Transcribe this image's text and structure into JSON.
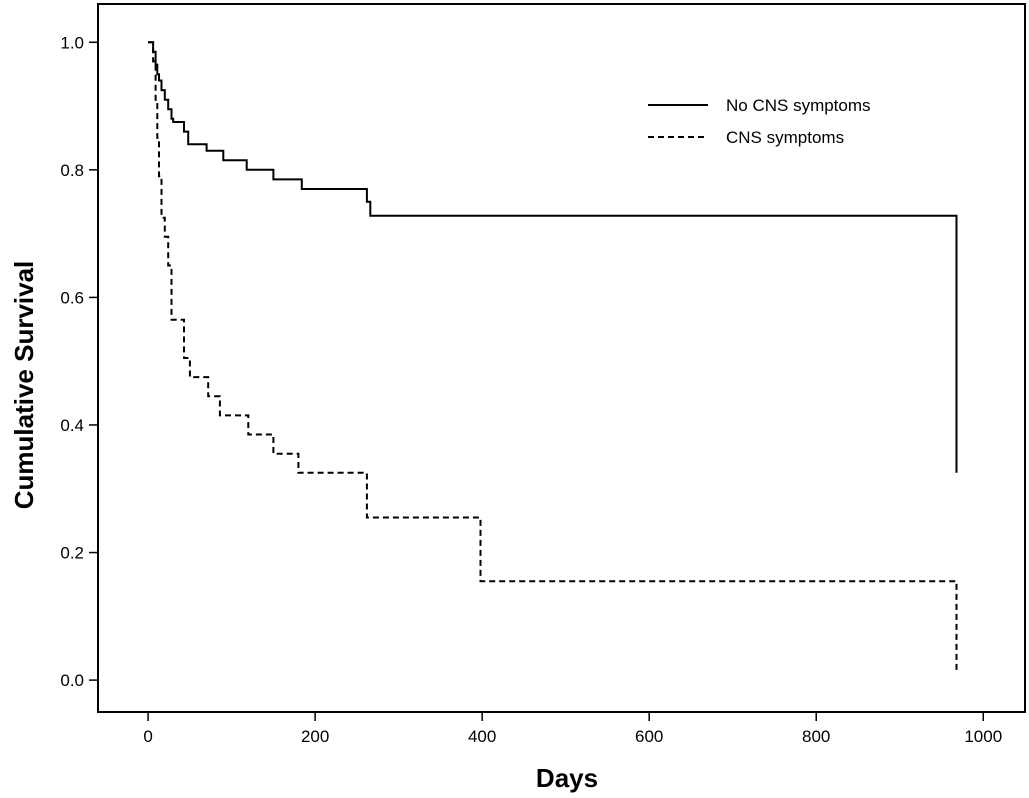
{
  "chart_data": {
    "type": "line",
    "title": "",
    "xlabel": "Days",
    "ylabel": "Cumulative Survival",
    "xlim": [
      -60,
      1050
    ],
    "ylim": [
      -0.05,
      1.06
    ],
    "xticks": [
      0,
      200,
      400,
      600,
      800,
      1000
    ],
    "yticks": [
      0.0,
      0.2,
      0.4,
      0.6,
      0.8,
      1.0
    ],
    "xtick_labels": [
      "0",
      "200",
      "400",
      "600",
      "800",
      "1000"
    ],
    "ytick_labels": [
      "0.0",
      "0.2",
      "0.4",
      "0.6",
      "0.8",
      "1.0"
    ],
    "grid": false,
    "legend_position": "top-right",
    "series": [
      {
        "name": "No CNS symptoms",
        "line_style": "solid",
        "color": "#000000",
        "x": [
          0,
          6,
          9,
          11,
          13,
          16,
          20,
          24,
          28,
          30,
          33,
          43,
          48,
          70,
          90,
          118,
          150,
          184,
          258,
          262,
          266,
          398,
          968,
          968
        ],
        "y": [
          1.0,
          0.985,
          0.965,
          0.95,
          0.94,
          0.925,
          0.91,
          0.895,
          0.88,
          0.875,
          0.875,
          0.86,
          0.84,
          0.83,
          0.815,
          0.8,
          0.785,
          0.77,
          0.77,
          0.75,
          0.728,
          0.728,
          0.648,
          0.325
        ]
      },
      {
        "name": "CNS symptoms",
        "line_style": "dashed",
        "color": "#000000",
        "x": [
          0,
          6,
          9,
          11,
          13,
          16,
          20,
          24,
          28,
          36,
          43,
          50,
          72,
          86,
          100,
          120,
          150,
          180,
          258,
          262,
          398,
          968,
          968
        ],
        "y": [
          1.0,
          0.97,
          0.91,
          0.85,
          0.79,
          0.725,
          0.695,
          0.65,
          0.565,
          0.565,
          0.505,
          0.475,
          0.445,
          0.415,
          0.415,
          0.385,
          0.355,
          0.325,
          0.325,
          0.255,
          0.155,
          0.155,
          0.01
        ]
      }
    ]
  }
}
